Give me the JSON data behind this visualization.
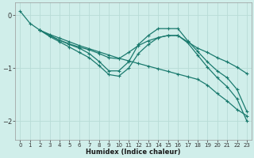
{
  "xlabel": "Humidex (Indice chaleur)",
  "ylabel": "",
  "background_color": "#d0eeea",
  "grid_color": "#b8dcd6",
  "line_color": "#1a7a6e",
  "xlim": [
    -0.5,
    23.5
  ],
  "ylim": [
    -2.35,
    0.25
  ],
  "yticks": [
    0,
    -1,
    -2
  ],
  "xticks": [
    0,
    1,
    2,
    3,
    4,
    5,
    6,
    7,
    8,
    9,
    10,
    11,
    12,
    13,
    14,
    15,
    16,
    17,
    18,
    19,
    20,
    21,
    22,
    23
  ],
  "lines": [
    {
      "x": [
        0,
        1,
        2,
        3,
        4,
        5,
        6,
        7,
        8,
        9,
        10,
        11,
        12,
        13,
        14,
        15,
        16,
        17,
        18,
        19,
        20,
        21,
        22,
        23
      ],
      "y": [
        0.08,
        -0.15,
        -0.28,
        -0.36,
        -0.43,
        -0.5,
        -0.57,
        -0.63,
        -0.69,
        -0.75,
        -0.81,
        -0.86,
        -0.91,
        -0.96,
        -1.01,
        -1.06,
        -1.11,
        -1.16,
        -1.21,
        -1.32,
        -1.48,
        -1.62,
        -1.78,
        -1.9
      ]
    },
    {
      "x": [
        2,
        3,
        4,
        5,
        6,
        7,
        8,
        9,
        10,
        11,
        12,
        13,
        14,
        15,
        16,
        17,
        18,
        19,
        20,
        21,
        22,
        23
      ],
      "y": [
        -0.28,
        -0.38,
        -0.47,
        -0.55,
        -0.62,
        -0.72,
        -0.87,
        -1.05,
        -1.05,
        -0.88,
        -0.55,
        -0.38,
        -0.25,
        -0.25,
        -0.25,
        -0.48,
        -0.68,
        -0.88,
        -1.05,
        -1.18,
        -1.4,
        -1.82
      ]
    },
    {
      "x": [
        2,
        3,
        4,
        5,
        6,
        7,
        8,
        9,
        10,
        11,
        12,
        13,
        14,
        15,
        16,
        17,
        18,
        19,
        20,
        21,
        22,
        23
      ],
      "y": [
        -0.28,
        -0.38,
        -0.47,
        -0.54,
        -0.6,
        -0.65,
        -0.72,
        -0.8,
        -0.82,
        -0.7,
        -0.57,
        -0.48,
        -0.42,
        -0.38,
        -0.38,
        -0.5,
        -0.62,
        -0.7,
        -0.8,
        -0.88,
        -0.98,
        -1.1
      ]
    },
    {
      "x": [
        2,
        3,
        4,
        5,
        6,
        7,
        8,
        9,
        10,
        11,
        12,
        13,
        14,
        15,
        16,
        17,
        18,
        19,
        20,
        21,
        22,
        23
      ],
      "y": [
        -0.28,
        -0.4,
        -0.5,
        -0.6,
        -0.7,
        -0.8,
        -0.95,
        -1.12,
        -1.15,
        -1.0,
        -0.72,
        -0.55,
        -0.42,
        -0.38,
        -0.38,
        -0.52,
        -0.75,
        -0.98,
        -1.18,
        -1.35,
        -1.58,
        -2.0
      ]
    }
  ]
}
